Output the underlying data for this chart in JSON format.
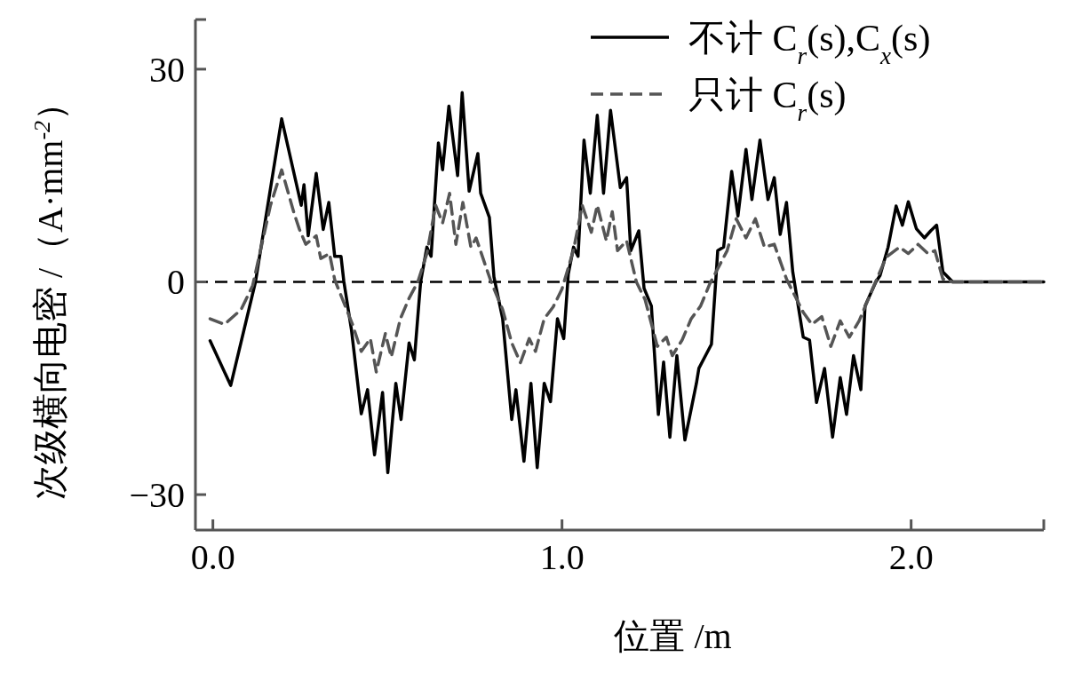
{
  "chart_data": {
    "type": "line",
    "xlabel": "位置 /m",
    "ylabel": "次级横向电密 /（A·mm$^{-2}$）",
    "legend": "top right",
    "grid": false,
    "xlim": [
      -0.05,
      2.38
    ],
    "ylim": [
      -35,
      37
    ],
    "xticks": [
      {
        "value": 0,
        "label": "0.0"
      },
      {
        "value": 1,
        "label": "1.0"
      },
      {
        "value": 2,
        "label": "2.0"
      }
    ],
    "yticks": [
      -30,
      0,
      30
    ],
    "ref_lines": [
      {
        "axis": "y",
        "value": 0,
        "color": "#000000",
        "line_style": "dashed"
      }
    ],
    "series": [
      {
        "name": "不计 C$_{r}$(s),C$_{x}$(s)",
        "color": "#000000",
        "line_style": "solid",
        "x": [
          -0.008,
          0.051,
          0.122,
          0.197,
          0.253,
          0.261,
          0.273,
          0.296,
          0.316,
          0.332,
          0.349,
          0.367,
          0.375,
          0.397,
          0.425,
          0.443,
          0.463,
          0.486,
          0.501,
          0.524,
          0.539,
          0.562,
          0.577,
          0.595,
          0.613,
          0.625,
          0.646,
          0.658,
          0.676,
          0.701,
          0.714,
          0.734,
          0.759,
          0.767,
          0.792,
          0.805,
          0.83,
          0.856,
          0.868,
          0.891,
          0.911,
          0.929,
          0.949,
          0.967,
          0.987,
          1.005,
          1.018,
          1.033,
          1.046,
          1.063,
          1.081,
          1.101,
          1.119,
          1.139,
          1.167,
          1.185,
          1.197,
          1.22,
          1.235,
          1.256,
          1.276,
          1.291,
          1.309,
          1.329,
          1.352,
          1.385,
          1.392,
          1.428,
          1.441,
          1.446,
          1.463,
          1.486,
          1.504,
          1.527,
          1.544,
          1.567,
          1.59,
          1.608,
          1.625,
          1.643,
          1.661,
          1.691,
          1.709,
          1.729,
          1.752,
          1.775,
          1.797,
          1.815,
          1.835,
          1.856,
          1.868,
          1.899,
          1.911,
          1.934,
          1.957,
          1.975,
          1.992,
          2.015,
          2.038,
          2.056,
          2.073,
          2.091,
          2.119,
          2.38
        ],
        "values": [
          -8.3,
          -14.6,
          0,
          23,
          10.8,
          13.7,
          6.5,
          15.3,
          7.4,
          11.2,
          3.6,
          3.6,
          0.1,
          -6.8,
          -18.6,
          -15.2,
          -24.4,
          -15.6,
          -26.9,
          -14.3,
          -19.4,
          -8.6,
          -11,
          0,
          4.9,
          3.6,
          19.6,
          15.8,
          24.8,
          15,
          26.7,
          12.8,
          18.1,
          12.5,
          9.1,
          0.7,
          -5.2,
          -19.4,
          -15.2,
          -25.3,
          -14.3,
          -26.2,
          -14.3,
          -16.9,
          -5.2,
          -8,
          1.1,
          4.9,
          3.6,
          20,
          12.5,
          23.5,
          12.5,
          24.2,
          13.3,
          14.7,
          4.4,
          7.2,
          -0.9,
          -3.4,
          -18.7,
          -11.3,
          -21.9,
          -10.4,
          -22.3,
          -14.3,
          -12.2,
          -8.8,
          0.6,
          4.4,
          4.9,
          15.6,
          9.3,
          18.7,
          11.6,
          20,
          11.6,
          14.7,
          6.7,
          11.2,
          1.4,
          -7.8,
          -8.2,
          -17,
          -12.2,
          -21.9,
          -13.5,
          -18.7,
          -10.4,
          -15.2,
          -3.4,
          0,
          0.9,
          4.9,
          10.7,
          8,
          11.3,
          7.5,
          6.2,
          7.2,
          8,
          1.4,
          0,
          0
        ]
      },
      {
        "name": "只计 C$_{r}$(s)",
        "color": "#555555",
        "line_style": "dashed",
        "x": [
          -0.008,
          0.033,
          0.081,
          0.114,
          0.165,
          0.197,
          0.233,
          0.248,
          0.266,
          0.296,
          0.309,
          0.334,
          0.349,
          0.4,
          0.425,
          0.451,
          0.468,
          0.494,
          0.511,
          0.537,
          0.562,
          0.587,
          0.613,
          0.638,
          0.658,
          0.678,
          0.696,
          0.716,
          0.739,
          0.754,
          0.78,
          0.797,
          0.83,
          0.856,
          0.881,
          0.906,
          0.924,
          0.949,
          0.975,
          1.0,
          1.033,
          1.058,
          1.084,
          1.101,
          1.127,
          1.144,
          1.159,
          1.185,
          1.213,
          1.238,
          1.273,
          1.299,
          1.316,
          1.344,
          1.37,
          1.397,
          1.423,
          1.473,
          1.499,
          1.527,
          1.554,
          1.58,
          1.608,
          1.643,
          1.691,
          1.716,
          1.744,
          1.77,
          1.797,
          1.823,
          1.851,
          1.881,
          1.899,
          1.929,
          1.967,
          1.992,
          2.02,
          2.048,
          2.068,
          2.091,
          2.119,
          2.38
        ],
        "values": [
          -5.2,
          -6,
          -3.9,
          -0.5,
          10.8,
          15.8,
          9.6,
          7.4,
          5.3,
          6.5,
          3.3,
          4,
          0.3,
          -6,
          -9.8,
          -8,
          -12.7,
          -7.3,
          -10.6,
          -5.2,
          -2.3,
          0,
          4,
          10.8,
          8.3,
          12.5,
          5.3,
          11.2,
          4.9,
          6.2,
          2.4,
          0,
          -3.9,
          -8.6,
          -11.4,
          -8,
          -9.8,
          -5.2,
          -3.5,
          -1,
          4.5,
          10.8,
          7,
          10.8,
          5.8,
          9.9,
          4.4,
          5.8,
          0,
          -2.5,
          -9.1,
          -7.8,
          -10.4,
          -8.2,
          -5.2,
          -3.4,
          -0.3,
          4.4,
          8.9,
          6.2,
          8.9,
          4.9,
          5.3,
          0.4,
          -4.3,
          -6,
          -4.9,
          -9.1,
          -5.5,
          -7.8,
          -5.5,
          -2,
          0.1,
          3.5,
          4.9,
          4,
          5.3,
          4,
          4.4,
          0.4,
          0,
          0
        ]
      }
    ]
  }
}
